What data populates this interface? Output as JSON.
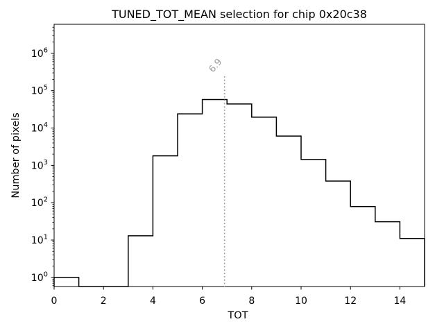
{
  "figure": {
    "title": "TUNED_TOT_MEAN selection for chip 0x20c38"
  },
  "chart_data": {
    "type": "bar",
    "subtype": "step-histogram",
    "title": "TUNED_TOT_MEAN selection for chip 0x20c38",
    "xlabel": "TOT",
    "ylabel": "Number of pixels",
    "y_scale": "log",
    "grid": false,
    "legend": null,
    "bin_edges": [
      0,
      1,
      2,
      3,
      4,
      5,
      6,
      7,
      8,
      9,
      10,
      11,
      12,
      13,
      14,
      15
    ],
    "counts": [
      1,
      0,
      0,
      13,
      1800,
      24000,
      58000,
      44000,
      19500,
      6100,
      1440,
      380,
      79,
      31,
      11
    ],
    "xlim": [
      0,
      15
    ],
    "ylim": [
      0.57,
      6000000
    ],
    "x_ticks": [
      0,
      2,
      4,
      6,
      8,
      10,
      12,
      14
    ],
    "y_tick_exponents": [
      0,
      1,
      2,
      3,
      4,
      5,
      6
    ],
    "y_tick_base": "10",
    "line_color": "#000000",
    "vline": {
      "x": 6.9,
      "label": "6.9",
      "color": "#999999",
      "linestyle": "dotted"
    }
  }
}
